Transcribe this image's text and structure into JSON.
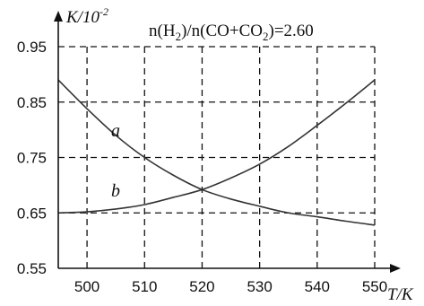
{
  "chart_data": {
    "type": "line",
    "title_parts": [
      "n(H",
      "2",
      ")/n(CO+CO",
      "2",
      ")=2.60"
    ],
    "ylabel_main": "K/10",
    "ylabel_sup": "-2",
    "xlabel": "T/K",
    "xlim": [
      495,
      550
    ],
    "ylim": [
      0.55,
      0.95
    ],
    "xticks": [
      500,
      510,
      520,
      530,
      540,
      550
    ],
    "xtick_labels": [
      "500",
      "510",
      "520",
      "530",
      "540",
      "550"
    ],
    "yticks": [
      0.55,
      0.65,
      0.75,
      0.85,
      0.95
    ],
    "ytick_labels": [
      "0.55",
      "0.65",
      "0.75",
      "0.85",
      "0.95"
    ],
    "grid": "dashed",
    "series": [
      {
        "name": "a",
        "x": [
          495,
          500,
          505,
          510,
          515,
          520,
          525,
          530,
          535,
          540,
          545,
          550
        ],
        "y": [
          0.89,
          0.838,
          0.79,
          0.75,
          0.718,
          0.692,
          0.675,
          0.662,
          0.65,
          0.643,
          0.635,
          0.628
        ]
      },
      {
        "name": "b",
        "x": [
          495,
          500,
          505,
          510,
          515,
          520,
          525,
          530,
          535,
          540,
          545,
          550
        ],
        "y": [
          0.65,
          0.652,
          0.657,
          0.665,
          0.678,
          0.692,
          0.713,
          0.738,
          0.77,
          0.808,
          0.848,
          0.89
        ]
      }
    ]
  }
}
